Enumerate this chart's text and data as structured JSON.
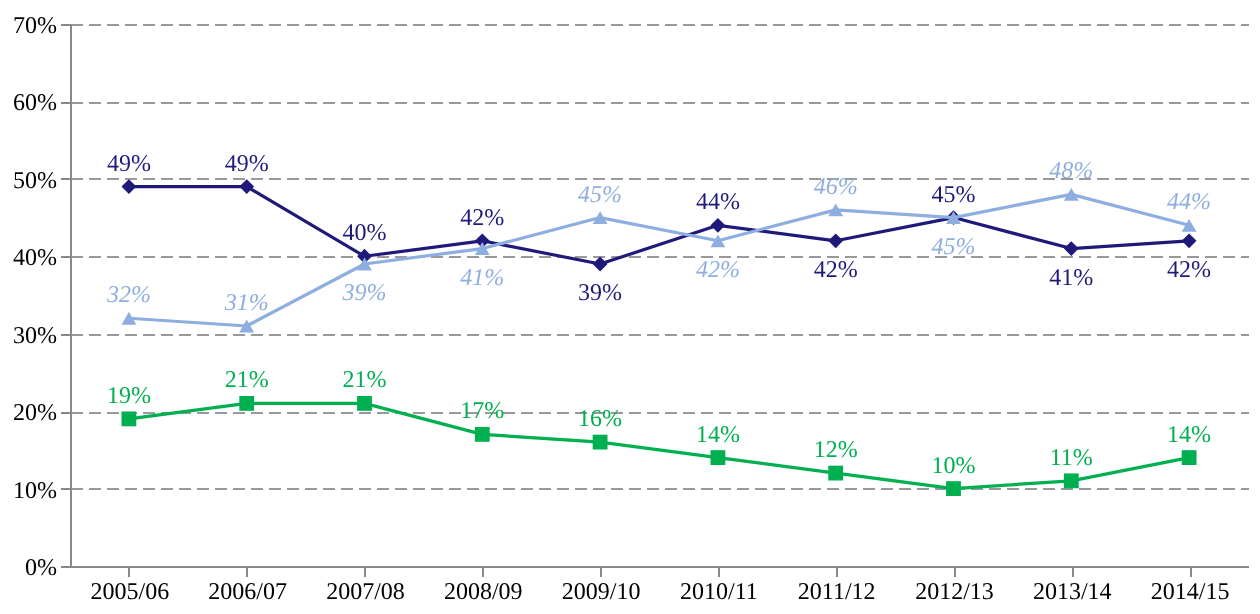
{
  "chart_data": {
    "type": "line",
    "categories": [
      "2005/06",
      "2006/07",
      "2007/08",
      "2008/09",
      "2009/10",
      "2010/11",
      "2011/12",
      "2012/13",
      "2013/14",
      "2014/15"
    ],
    "series": [
      {
        "color": "#1f1a7a",
        "marker": "diamond",
        "values": [
          49,
          49,
          40,
          42,
          39,
          44,
          42,
          45,
          41,
          42
        ],
        "value_labels": [
          "49%",
          "49%",
          "40%",
          "42%",
          "39%",
          "44%",
          "42%",
          "45%",
          "41%",
          "42%"
        ]
      },
      {
        "color": "#8eaee0",
        "marker": "triangle",
        "values": [
          32,
          31,
          39,
          41,
          45,
          42,
          46,
          45,
          48,
          44
        ],
        "value_labels": [
          "32%",
          "31%",
          "39%",
          "41%",
          "45%",
          "42%",
          "46%",
          "45%",
          "48%",
          "44%"
        ]
      },
      {
        "color": "#00b050",
        "marker": "square",
        "values": [
          19,
          21,
          21,
          17,
          16,
          14,
          12,
          10,
          11,
          14
        ],
        "value_labels": [
          "19%",
          "21%",
          "21%",
          "17%",
          "16%",
          "14%",
          "12%",
          "10%",
          "11%",
          "14%"
        ]
      }
    ],
    "ylim": [
      0,
      70
    ],
    "yticks": [
      {
        "value": 0,
        "label": "0%"
      },
      {
        "value": 10,
        "label": "10%"
      },
      {
        "value": 20,
        "label": "20%"
      },
      {
        "value": 30,
        "label": "30%"
      },
      {
        "value": 40,
        "label": "40%"
      },
      {
        "value": 50,
        "label": "50%"
      },
      {
        "value": 60,
        "label": "60%"
      },
      {
        "value": 70,
        "label": "70%"
      }
    ],
    "grid": "y",
    "line_style": "solid"
  }
}
